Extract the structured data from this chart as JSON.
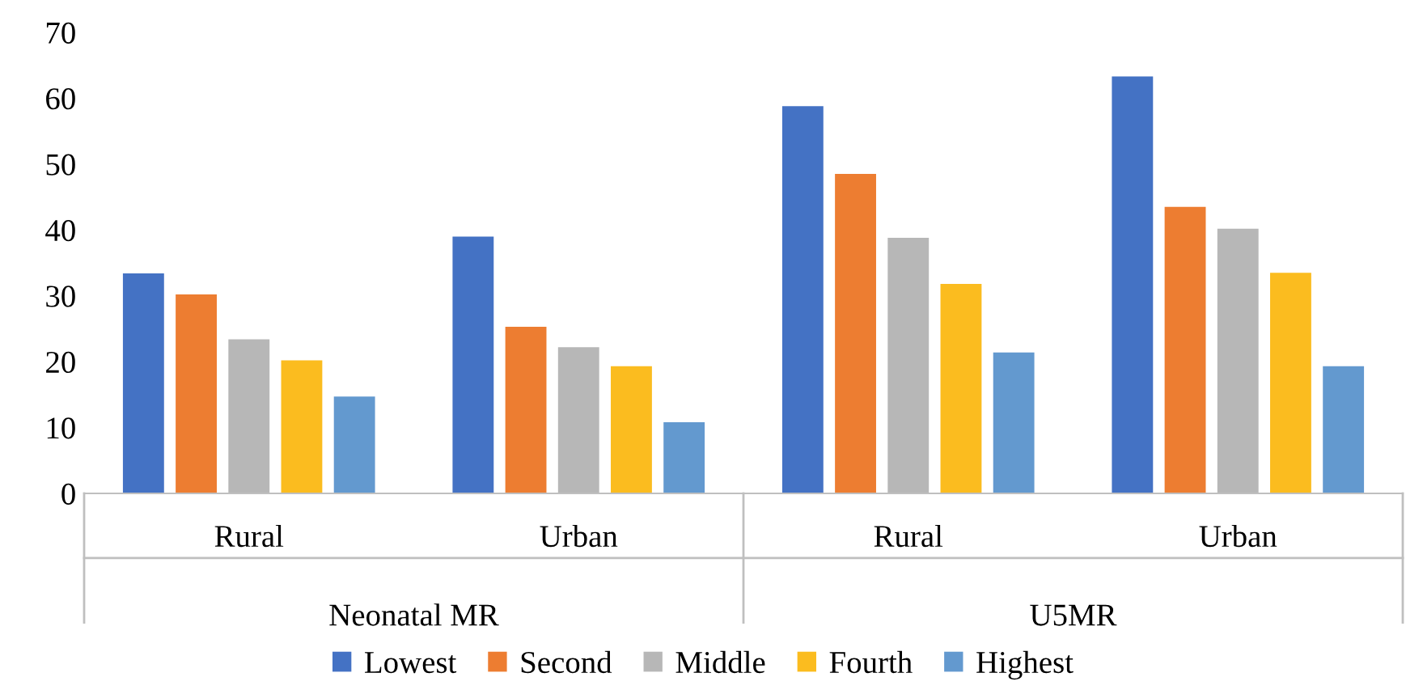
{
  "chart_data": {
    "type": "bar",
    "categories": [
      "Rural",
      "Urban",
      "Rural",
      "Urban"
    ],
    "annotations": [
      "Neonatal MR",
      "U5MR"
    ],
    "series": [
      {
        "name": "Lowest",
        "color": "#4472c4",
        "values": [
          33.4,
          39.0,
          58.8,
          63.3
        ]
      },
      {
        "name": "Second",
        "color": "#ed7d31",
        "values": [
          30.2,
          25.3,
          48.5,
          43.5
        ]
      },
      {
        "name": "Middle",
        "color": "#b7b7b7",
        "values": [
          23.4,
          22.2,
          38.8,
          40.2
        ]
      },
      {
        "name": "Fourth",
        "color": "#fbbc1f",
        "values": [
          20.2,
          19.3,
          31.8,
          33.5
        ]
      },
      {
        "name": "Highest",
        "color": "#6399cf",
        "values": [
          14.7,
          10.8,
          21.4,
          19.3
        ]
      }
    ],
    "ylim": [
      0,
      70
    ],
    "yticks": [
      0,
      10,
      20,
      30,
      40,
      50,
      60,
      70
    ],
    "grid": false,
    "legend": "bottom"
  }
}
